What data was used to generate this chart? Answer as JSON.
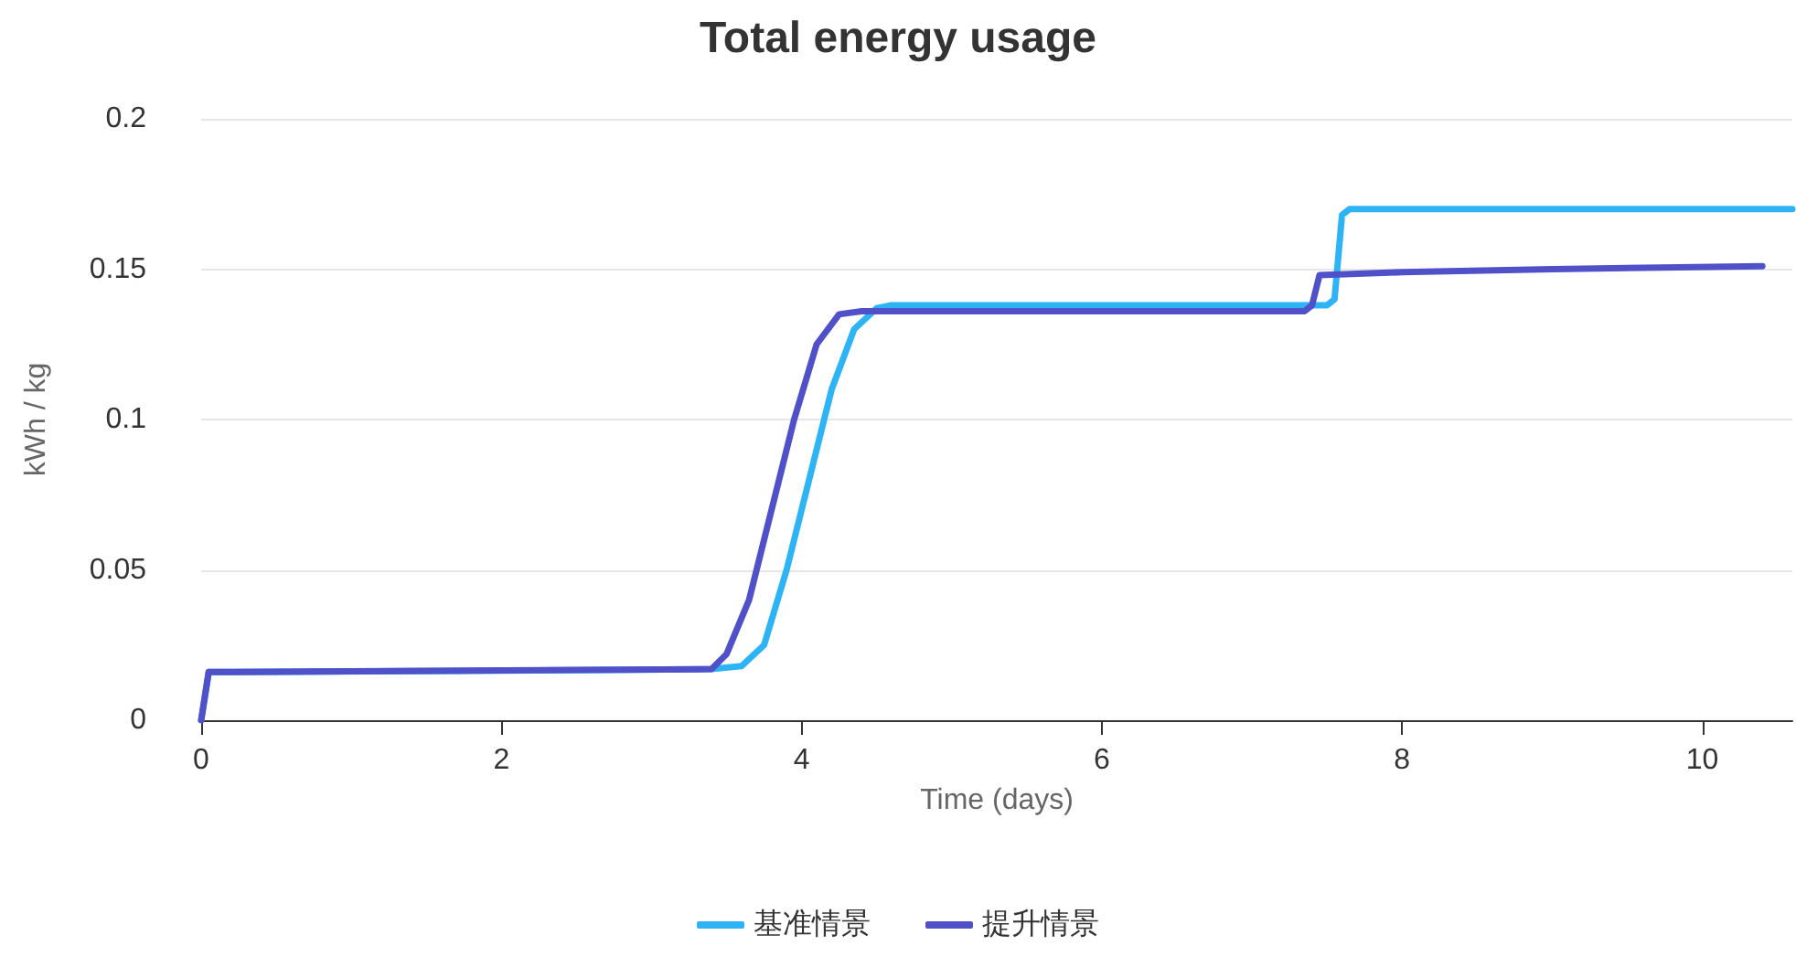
{
  "chart_data": {
    "type": "line",
    "title": "Total energy usage",
    "xlabel": "Time (days)",
    "ylabel": "kWh / kg",
    "xlim": [
      0,
      10.6
    ],
    "xticks": [
      0,
      2,
      4,
      6,
      8,
      10
    ],
    "ylim": [
      0,
      0.2
    ],
    "yticks": [
      0,
      0.05,
      0.1,
      0.15,
      0.2
    ],
    "grid": "y",
    "legend": "bottom",
    "marker": "none",
    "line_style": "solid",
    "series": [
      {
        "name": "基准情景",
        "color": "#2eb3f5",
        "x": [
          0,
          0.05,
          2,
          3.4,
          3.6,
          3.75,
          3.9,
          4.05,
          4.2,
          4.35,
          4.5,
          4.6,
          7.5,
          7.55,
          7.6,
          7.65,
          10.6
        ],
        "values": [
          0,
          0.016,
          0.0165,
          0.017,
          0.018,
          0.025,
          0.05,
          0.08,
          0.11,
          0.13,
          0.137,
          0.138,
          0.138,
          0.14,
          0.168,
          0.17,
          0.17
        ]
      },
      {
        "name": "提升情景",
        "color": "#5050c8",
        "x": [
          0,
          0.05,
          3.4,
          3.5,
          3.65,
          3.8,
          3.95,
          4.1,
          4.25,
          4.4,
          7.35,
          7.4,
          7.45,
          8,
          9,
          10.4
        ],
        "values": [
          0,
          0.016,
          0.017,
          0.022,
          0.04,
          0.07,
          0.1,
          0.125,
          0.135,
          0.136,
          0.136,
          0.138,
          0.148,
          0.149,
          0.15,
          0.151
        ]
      }
    ]
  }
}
